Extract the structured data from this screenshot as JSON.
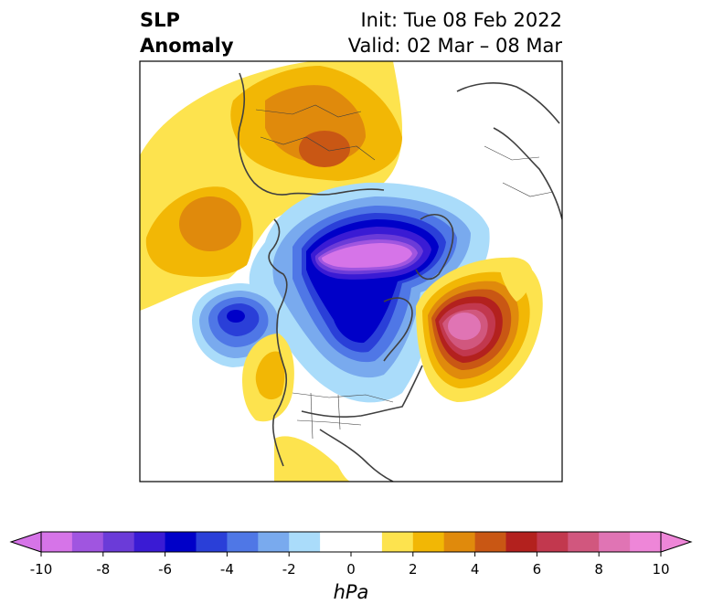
{
  "title": {
    "left_line1": "SLP",
    "left_line2": "Anomaly",
    "right_line1": "Init: Tue 08 Feb 2022",
    "right_line2": "Valid: 02 Mar – 08 Mar"
  },
  "colorbar": {
    "unit": "hPa",
    "ticks": [
      "-10",
      "-8",
      "-6",
      "-4",
      "-2",
      "0",
      "2",
      "4",
      "6",
      "8",
      "10"
    ],
    "colors": [
      "#d674e8",
      "#a055e0",
      "#6b3bd8",
      "#3a1bd4",
      "#0000c8",
      "#2a3fd8",
      "#4f77e6",
      "#79aaee",
      "#aadcfa",
      "#ffffff",
      "#ffffff",
      "#fde34e",
      "#f2b705",
      "#e08a0c",
      "#c95714",
      "#b3211e",
      "#c2384e",
      "#d1577e",
      "#e074b4",
      "#ee86d8"
    ]
  }
}
